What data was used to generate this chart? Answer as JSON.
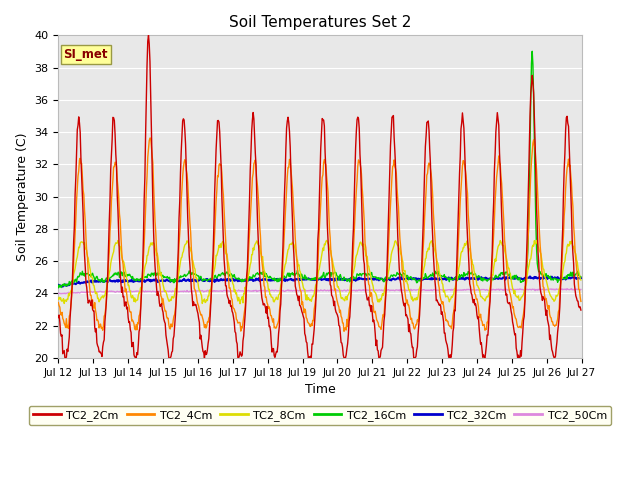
{
  "title": "Soil Temperatures Set 2",
  "xlabel": "Time",
  "ylabel": "Soil Temperature (C)",
  "ylim": [
    20,
    40
  ],
  "xlim": [
    0,
    15
  ],
  "annotation": "SI_met",
  "bg_color": "#e8e8e8",
  "series": {
    "TC2_2Cm": {
      "color": "#cc0000",
      "lw": 1.0
    },
    "TC2_4Cm": {
      "color": "#ff8800",
      "lw": 1.0
    },
    "TC2_8Cm": {
      "color": "#dddd00",
      "lw": 1.0
    },
    "TC2_16Cm": {
      "color": "#00cc00",
      "lw": 1.0
    },
    "TC2_32Cm": {
      "color": "#0000cc",
      "lw": 1.5
    },
    "TC2_50Cm": {
      "color": "#dd88dd",
      "lw": 1.0
    }
  },
  "xtick_labels": [
    "Jul 12",
    "Jul 13",
    "Jul 14",
    "Jul 15",
    "Jul 16",
    "Jul 17",
    "Jul 18",
    "Jul 19",
    "Jul 20",
    "Jul 21",
    "Jul 22",
    "Jul 23",
    "Jul 24",
    "Jul 25",
    "Jul 26",
    "Jul 27"
  ],
  "xtick_positions": [
    0,
    1,
    2,
    3,
    4,
    5,
    6,
    7,
    8,
    9,
    10,
    11,
    12,
    13,
    14,
    15
  ],
  "ytick_positions": [
    20,
    22,
    24,
    26,
    28,
    30,
    32,
    34,
    36,
    38,
    40
  ],
  "grid_color": "#ffffff",
  "legend_bg": "#fffff0"
}
